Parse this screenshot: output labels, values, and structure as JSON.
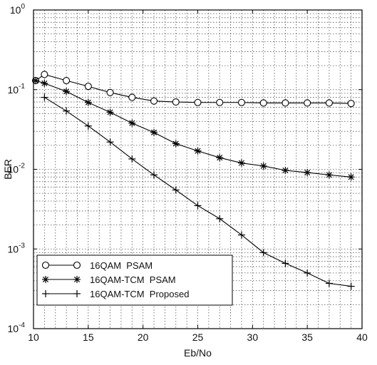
{
  "chart_data": {
    "type": "line",
    "title": "",
    "xlabel": "Eb/No",
    "ylabel": "BER",
    "xlim": [
      10,
      40
    ],
    "ylim": [
      0.0001,
      1
    ],
    "yscale": "log",
    "grid": "on (major and minor, dotted)",
    "legend_position": "bottom-left",
    "x_ticks": [
      "10",
      "15",
      "20",
      "25",
      "30",
      "35",
      "40"
    ],
    "y_ticks": [
      {
        "base": "10",
        "exp": "-4",
        "value": 0.0001
      },
      {
        "base": "10",
        "exp": "-3",
        "value": 0.001
      },
      {
        "base": "10",
        "exp": "-2",
        "value": 0.01
      },
      {
        "base": "10",
        "exp": "-1",
        "value": 0.1
      },
      {
        "base": "10",
        "exp": "0",
        "value": 1
      }
    ],
    "series": [
      {
        "name": "16QAM  PSAM",
        "marker": "circle",
        "x": [
          10.2,
          11,
          13,
          15,
          17,
          19,
          21,
          23,
          25,
          27,
          29,
          31,
          33,
          35,
          37,
          39
        ],
        "y": [
          0.13,
          0.155,
          0.13,
          0.11,
          0.092,
          0.08,
          0.072,
          0.07,
          0.069,
          0.069,
          0.069,
          0.068,
          0.068,
          0.068,
          0.068,
          0.067
        ]
      },
      {
        "name": "16QAM-TCM  PSAM",
        "marker": "asterisk",
        "x": [
          10.2,
          11,
          13,
          15,
          17,
          19,
          21,
          23,
          25,
          27,
          29,
          31,
          33,
          35,
          37,
          39
        ],
        "y": [
          0.13,
          0.12,
          0.095,
          0.069,
          0.052,
          0.038,
          0.029,
          0.021,
          0.017,
          0.014,
          0.012,
          0.011,
          0.0097,
          0.0091,
          0.0085,
          0.008
        ]
      },
      {
        "name": "16QAM-TCM  Proposed",
        "marker": "plus",
        "x": [
          11,
          13,
          15,
          17,
          19,
          21,
          23,
          25,
          27,
          29,
          31,
          33,
          35,
          37,
          39
        ],
        "y": [
          0.08,
          0.054,
          0.035,
          0.022,
          0.0135,
          0.0085,
          0.0055,
          0.0035,
          0.0024,
          0.0015,
          0.0009,
          0.00066,
          0.0005,
          0.00037,
          0.00034
        ]
      }
    ]
  }
}
